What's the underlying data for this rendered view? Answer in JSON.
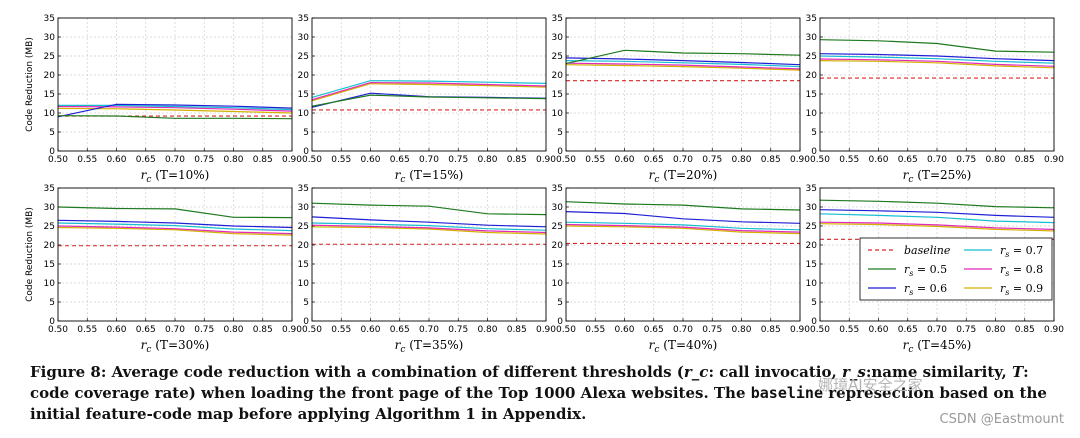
{
  "chart_data": [
    {
      "type": "line",
      "xlabel": "r_c (T=10%)",
      "ylabel": "Code Reduction (MB)",
      "x": [
        0.5,
        0.6,
        0.7,
        0.8,
        0.9
      ],
      "xlim": [
        0.5,
        0.9
      ],
      "ylim": [
        0,
        35
      ],
      "baseline": 9.2,
      "series": [
        {
          "name": "r_s = 0.5",
          "values": [
            9.3,
            9.2,
            8.6,
            8.6,
            8.5
          ]
        },
        {
          "name": "r_s = 0.6",
          "values": [
            9.0,
            12.3,
            12.1,
            11.8,
            11.3
          ]
        },
        {
          "name": "r_s = 0.7",
          "values": [
            12.0,
            12.0,
            11.7,
            11.4,
            10.9
          ]
        },
        {
          "name": "r_s = 0.8",
          "values": [
            11.7,
            11.6,
            11.4,
            11.0,
            10.5
          ]
        },
        {
          "name": "r_s = 0.9",
          "values": [
            11.2,
            11.1,
            10.8,
            10.4,
            10.0
          ]
        }
      ]
    },
    {
      "type": "line",
      "xlabel": "r_c (T=15%)",
      "ylabel": "",
      "x": [
        0.5,
        0.6,
        0.7,
        0.8,
        0.9
      ],
      "xlim": [
        0.5,
        0.9
      ],
      "ylim": [
        0,
        35
      ],
      "baseline": 10.8,
      "series": [
        {
          "name": "r_s = 0.5",
          "values": [
            11.8,
            14.7,
            14.2,
            14.0,
            13.8
          ]
        },
        {
          "name": "r_s = 0.6",
          "values": [
            11.5,
            15.2,
            14.3,
            14.1,
            13.9
          ]
        },
        {
          "name": "r_s = 0.7",
          "values": [
            14.1,
            18.5,
            18.4,
            18.1,
            17.8
          ]
        },
        {
          "name": "r_s = 0.8",
          "values": [
            13.5,
            18.0,
            17.9,
            17.5,
            17.1
          ]
        },
        {
          "name": "r_s = 0.9",
          "values": [
            13.2,
            17.7,
            17.5,
            17.2,
            16.8
          ]
        }
      ]
    },
    {
      "type": "line",
      "xlabel": "r_c (T=20%)",
      "ylabel": "",
      "x": [
        0.5,
        0.6,
        0.7,
        0.8,
        0.9
      ],
      "xlim": [
        0.5,
        0.9
      ],
      "ylim": [
        0,
        35
      ],
      "baseline": 18.5,
      "series": [
        {
          "name": "r_s = 0.5",
          "values": [
            23.0,
            26.5,
            25.8,
            25.6,
            25.2
          ]
        },
        {
          "name": "r_s = 0.6",
          "values": [
            24.5,
            24.2,
            23.8,
            23.3,
            22.7
          ]
        },
        {
          "name": "r_s = 0.7",
          "values": [
            23.8,
            23.6,
            23.2,
            22.8,
            22.2
          ]
        },
        {
          "name": "r_s = 0.8",
          "values": [
            23.1,
            22.9,
            22.6,
            22.1,
            21.6
          ]
        },
        {
          "name": "r_s = 0.9",
          "values": [
            22.7,
            22.5,
            22.2,
            21.8,
            21.3
          ]
        }
      ]
    },
    {
      "type": "line",
      "xlabel": "r_c (T=25%)",
      "ylabel": "",
      "x": [
        0.5,
        0.6,
        0.7,
        0.8,
        0.9
      ],
      "xlim": [
        0.5,
        0.9
      ],
      "ylim": [
        0,
        35
      ],
      "baseline": 19.2,
      "series": [
        {
          "name": "r_s = 0.5",
          "values": [
            29.3,
            29.0,
            28.3,
            26.3,
            26.0
          ]
        },
        {
          "name": "r_s = 0.6",
          "values": [
            25.6,
            25.4,
            25.0,
            24.3,
            23.8
          ]
        },
        {
          "name": "r_s = 0.7",
          "values": [
            25.0,
            24.7,
            24.3,
            23.6,
            23.1
          ]
        },
        {
          "name": "r_s = 0.8",
          "values": [
            24.2,
            24.0,
            23.6,
            22.8,
            22.3
          ]
        },
        {
          "name": "r_s = 0.9",
          "values": [
            23.8,
            23.6,
            23.2,
            22.4,
            21.9
          ]
        }
      ]
    },
    {
      "type": "line",
      "xlabel": "r_c (T=30%)",
      "ylabel": "Code Reduction (MB)",
      "x": [
        0.5,
        0.6,
        0.7,
        0.8,
        0.9
      ],
      "xlim": [
        0.5,
        0.9
      ],
      "ylim": [
        0,
        35
      ],
      "baseline": 19.8,
      "series": [
        {
          "name": "r_s = 0.5",
          "values": [
            30.0,
            29.6,
            29.5,
            27.3,
            27.2
          ]
        },
        {
          "name": "r_s = 0.6",
          "values": [
            26.5,
            26.2,
            25.8,
            25.0,
            24.6
          ]
        },
        {
          "name": "r_s = 0.7",
          "values": [
            25.8,
            25.5,
            25.1,
            24.2,
            23.8
          ]
        },
        {
          "name": "r_s = 0.8",
          "values": [
            25.0,
            24.7,
            24.3,
            23.4,
            23.0
          ]
        },
        {
          "name": "r_s = 0.9",
          "values": [
            24.6,
            24.4,
            24.0,
            23.0,
            22.6
          ]
        }
      ]
    },
    {
      "type": "line",
      "xlabel": "r_c (T=35%)",
      "ylabel": "",
      "x": [
        0.5,
        0.6,
        0.7,
        0.8,
        0.9
      ],
      "xlim": [
        0.5,
        0.9
      ],
      "ylim": [
        0,
        35
      ],
      "baseline": 20.2,
      "series": [
        {
          "name": "r_s = 0.5",
          "values": [
            31.0,
            30.5,
            30.2,
            28.2,
            28.0
          ]
        },
        {
          "name": "r_s = 0.6",
          "values": [
            27.4,
            26.6,
            26.0,
            25.2,
            24.8
          ]
        },
        {
          "name": "r_s = 0.7",
          "values": [
            25.8,
            25.5,
            25.1,
            24.3,
            23.9
          ]
        },
        {
          "name": "r_s = 0.8",
          "values": [
            25.2,
            24.9,
            24.5,
            23.7,
            23.3
          ]
        },
        {
          "name": "r_s = 0.9",
          "values": [
            24.8,
            24.6,
            24.2,
            23.3,
            22.9
          ]
        }
      ]
    },
    {
      "type": "line",
      "xlabel": "r_c (T=40%)",
      "ylabel": "",
      "x": [
        0.5,
        0.6,
        0.7,
        0.8,
        0.9
      ],
      "xlim": [
        0.5,
        0.9
      ],
      "ylim": [
        0,
        35
      ],
      "baseline": 20.4,
      "series": [
        {
          "name": "r_s = 0.5",
          "values": [
            31.4,
            30.8,
            30.5,
            29.5,
            29.2
          ]
        },
        {
          "name": "r_s = 0.6",
          "values": [
            28.8,
            28.3,
            26.9,
            26.1,
            25.7
          ]
        },
        {
          "name": "r_s = 0.7",
          "values": [
            26.0,
            25.7,
            25.3,
            24.4,
            24.0
          ]
        },
        {
          "name": "r_s = 0.8",
          "values": [
            25.4,
            25.1,
            24.7,
            23.8,
            23.4
          ]
        },
        {
          "name": "r_s = 0.9",
          "values": [
            25.0,
            24.8,
            24.4,
            23.4,
            23.0
          ]
        }
      ]
    },
    {
      "type": "line",
      "xlabel": "r_c (T=45%)",
      "ylabel": "",
      "x": [
        0.5,
        0.6,
        0.7,
        0.8,
        0.9
      ],
      "xlim": [
        0.5,
        0.9
      ],
      "ylim": [
        0,
        35
      ],
      "baseline": 21.5,
      "series": [
        {
          "name": "r_s = 0.5",
          "values": [
            31.8,
            31.5,
            31.0,
            30.1,
            29.8
          ]
        },
        {
          "name": "r_s = 0.6",
          "values": [
            29.3,
            29.0,
            28.6,
            27.8,
            27.3
          ]
        },
        {
          "name": "r_s = 0.7",
          "values": [
            28.2,
            27.8,
            27.3,
            26.3,
            25.9
          ]
        },
        {
          "name": "r_s = 0.8",
          "values": [
            26.0,
            25.8,
            25.3,
            24.5,
            24.1
          ]
        },
        {
          "name": "r_s = 0.9",
          "values": [
            25.6,
            25.4,
            24.9,
            24.1,
            23.7
          ]
        }
      ]
    }
  ],
  "axis": {
    "xticks": [
      "0.50",
      "0.55",
      "0.60",
      "0.65",
      "0.70",
      "0.75",
      "0.80",
      "0.85",
      "0.90"
    ],
    "yticks": [
      "0",
      "5",
      "10",
      "15",
      "20",
      "25",
      "30",
      "35"
    ]
  },
  "legend": {
    "entries": [
      {
        "key": "baseline",
        "label": "baseline",
        "color": "#d62728",
        "dashed": true
      },
      {
        "key": "s5",
        "label": "r_s = 0.5",
        "color": "#1f7a1f",
        "dashed": false
      },
      {
        "key": "s6",
        "label": "r_s = 0.6",
        "color": "#1f1fd6",
        "dashed": false
      },
      {
        "key": "s7",
        "label": "r_s = 0.7",
        "color": "#17becf",
        "dashed": false
      },
      {
        "key": "s8",
        "label": "r_s = 0.8",
        "color": "#e02ab8",
        "dashed": false
      },
      {
        "key": "s9",
        "label": "r_s = 0.9",
        "color": "#d4b000",
        "dashed": false
      }
    ]
  },
  "colors": {
    "baseline": "#d62728",
    "s5": "#1f7a1f",
    "s6": "#1f1fd6",
    "s7": "#17becf",
    "s8": "#e02ab8",
    "s9": "#d4b000"
  },
  "caption": {
    "part1": "Figure 8: Average code reduction with a combination of different thresholds (",
    "rc": "r_c",
    "part2": ": call invocatio",
    "part3": ", ",
    "rs": "r_s",
    "part4": ":name similarity, ",
    "T": "T",
    "part5": ": code coverage rate) when loading the front page of the Top 1000 Alexa websites. The ",
    "mono": "baseline",
    "part6": " represe",
    "part7": " based on the initial feature-code map before applying Algorithm 1 in Appendix.",
    "tail": "ction"
  },
  "watermark": {
    "csdn": "CSDN @Eastmount",
    "wechat": "娜璋AI安全之家"
  }
}
